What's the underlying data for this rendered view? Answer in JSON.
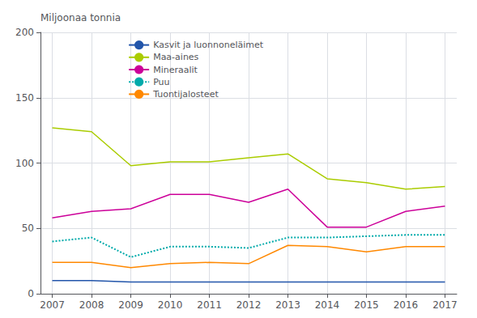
{
  "chart_data": {
    "type": "line",
    "y_label": "Miljoonaa tonnia",
    "x": [
      2007,
      2008,
      2009,
      2010,
      2011,
      2012,
      2013,
      2014,
      2015,
      2016,
      2017
    ],
    "series": [
      {
        "name": "Kasvit ja luonnoneläimet",
        "color": "#2255aa",
        "line_style": "solid",
        "values": [
          10,
          10,
          9,
          9,
          9,
          9,
          9,
          9,
          9,
          9,
          9
        ]
      },
      {
        "name": "Maa-aines",
        "color": "#aacc00",
        "line_style": "solid",
        "values": [
          127,
          124,
          98,
          101,
          101,
          104,
          107,
          88,
          85,
          80,
          82
        ]
      },
      {
        "name": "Mineraalit",
        "color": "#cc0099",
        "line_style": "solid",
        "values": [
          58,
          63,
          65,
          76,
          76,
          70,
          80,
          51,
          51,
          63,
          67
        ]
      },
      {
        "name": "Puu",
        "color": "#00aaaa",
        "line_style": "dotted",
        "values": [
          40,
          43,
          28,
          36,
          36,
          35,
          43,
          43,
          44,
          45,
          45
        ]
      },
      {
        "name": "Tuontijalosteet",
        "color": "#ff8800",
        "line_style": "solid",
        "values": [
          24,
          24,
          20,
          23,
          24,
          23,
          37,
          36,
          32,
          36,
          36
        ]
      }
    ],
    "xlim": [
      2006.7,
      2017.3
    ],
    "xticks": [
      2007,
      2008,
      2009,
      2010,
      2011,
      2012,
      2013,
      2014,
      2015,
      2016,
      2017
    ],
    "ylim": [
      0,
      200
    ],
    "yticks": [
      0,
      50,
      100,
      150,
      200
    ],
    "grid": true,
    "legend": "upper left"
  }
}
